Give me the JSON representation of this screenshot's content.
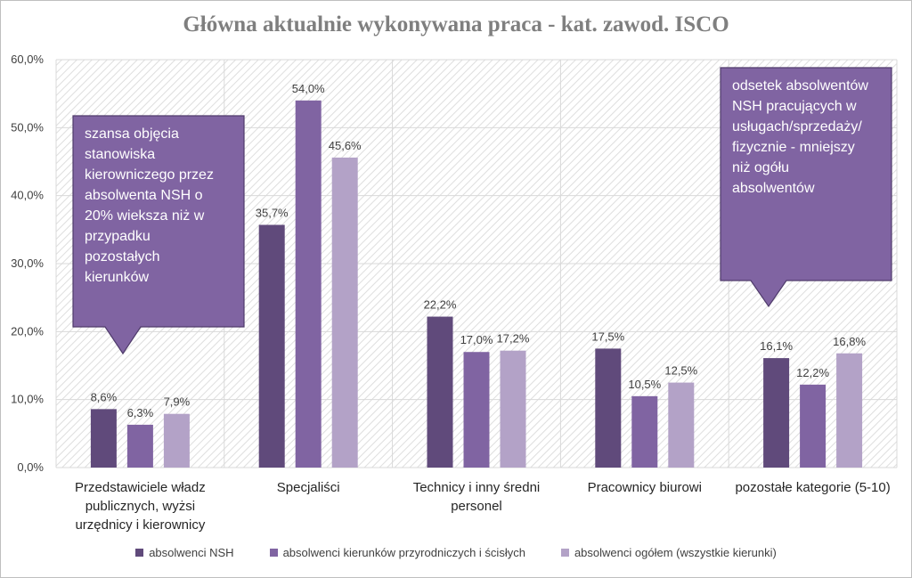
{
  "chart_data": {
    "type": "bar",
    "title": "Główna aktualnie wykonywana praca - kat. zawod. ISCO",
    "categories": [
      "Przedstawiciele władz publicznych, wyżsi urzędnicy i kierownicy",
      "Specjaliści",
      "Technicy i inny średni personel",
      "Pracownicy biurowi",
      "pozostałe kategorie (5-10)"
    ],
    "series": [
      {
        "name": "absolwenci NSH",
        "color": "#604a7b",
        "values": [
          8.6,
          35.7,
          22.2,
          17.5,
          16.1
        ],
        "labels": [
          "8,6%",
          "35,7%",
          "22,2%",
          "17,5%",
          "16,1%"
        ]
      },
      {
        "name": "absolwenci kierunków przyrodniczych i ścisłych",
        "color": "#8064a2",
        "values": [
          6.3,
          54.0,
          17.0,
          10.5,
          12.2
        ],
        "labels": [
          "6,3%",
          "54,0%",
          "17,0%",
          "10,5%",
          "12,2%"
        ]
      },
      {
        "name": "absolwenci ogółem (wszystkie kierunki)",
        "color": "#b3a2c7",
        "values": [
          7.9,
          45.6,
          17.2,
          12.5,
          16.8
        ],
        "labels": [
          "7,9%",
          "45,6%",
          "17,2%",
          "12,5%",
          "16,8%"
        ]
      }
    ],
    "ylim": [
      0,
      60
    ],
    "yticks": [
      0,
      10,
      20,
      30,
      40,
      50,
      60
    ],
    "ytick_labels": [
      "0,0%",
      "10,0%",
      "20,0%",
      "30,0%",
      "40,0%",
      "50,0%",
      "60,0%"
    ],
    "grid": true,
    "legend_position": "bottom",
    "annotations": [
      {
        "text": "szansa objęcia stanowiska kierowniczego przez absolwenta NSH o 20% wieksza niż w przypadku pozostałych kierunków",
        "lines": [
          "szansa objęcia",
          "stanowiska",
          "kierowniczego przez",
          "absolwenta NSH o",
          "20% wieksza niż w",
          "przypadku",
          "pozostałych",
          "kierunków"
        ]
      },
      {
        "text": "odsetek absolwentów NSH pracujących w usługach/sprzedaży/ fizycznie - mniejszy niż ogółu absolwentów",
        "lines": [
          "odsetek absolwentów",
          "NSH pracujących w",
          "usługach/sprzedaży/",
          "fizycznie - mniejszy",
          "niż ogółu",
          "absolwentów"
        ]
      }
    ]
  },
  "category_lines": [
    [
      "Przedstawiciele władz",
      "publicznych, wyżsi",
      "urzędnicy i kierownicy"
    ],
    [
      "Specjaliści"
    ],
    [
      "Technicy i inny średni",
      "personel"
    ],
    [
      "Pracownicy biurowi"
    ],
    [
      "pozostałe kategorie (5-10)"
    ]
  ],
  "colors": {
    "callout_fill": "#8064a2",
    "callout_border": "#4f3b6b",
    "gridline": "#d9d9d9",
    "title": "#7f7f7f"
  }
}
